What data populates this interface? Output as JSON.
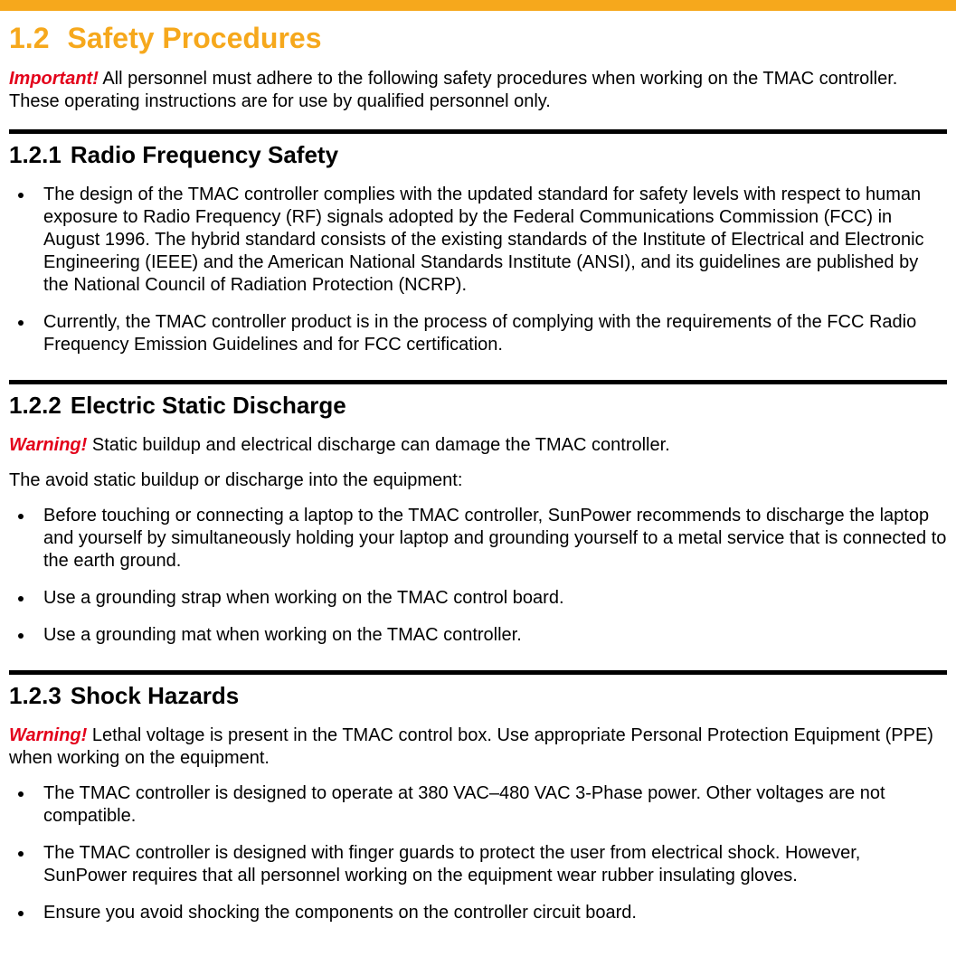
{
  "colors": {
    "orange_bar": "#f6a81c",
    "heading_orange": "#f6a81c",
    "warning_red": "#e3001a",
    "body_text": "#000000",
    "background": "#ffffff",
    "rule": "#000000"
  },
  "typography": {
    "h1_fontsize": 32,
    "h2_fontsize": 26,
    "body_fontsize": 20,
    "font_family": "Arial"
  },
  "header": {
    "section_number": "1.2",
    "section_title": "Safety Procedures"
  },
  "intro": {
    "label": "Important!",
    "text": " All personnel must adhere to the following safety procedures when working on the TMAC controller. These operating instructions are for use by qualified personnel only."
  },
  "sections": [
    {
      "number": "1.2.1",
      "title": "Radio Frequency Safety",
      "warning": null,
      "lead": null,
      "bullets": [
        "The design of the TMAC controller complies with the updated standard for safety levels with respect to human exposure to Radio Frequency (RF) signals adopted by the Federal Communications Commission (FCC) in August 1996. The hybrid standard consists of the existing standards of the Institute of Electrical and Electronic Engineering (IEEE) and the American National Standards Institute (ANSI), and its guidelines are published by the National Council of Radiation Protection (NCRP).",
        "Currently, the TMAC controller product is in the process of complying with the requirements of the FCC Radio Frequency Emission Guidelines and for FCC certification."
      ]
    },
    {
      "number": "1.2.2",
      "title": "Electric Static Discharge",
      "warning": {
        "label": "Warning!",
        "text": " Static buildup and electrical discharge can damage the TMAC controller."
      },
      "lead": "The avoid static buildup or discharge into the equipment:",
      "bullets": [
        "Before touching or connecting a laptop to the TMAC controller, SunPower recommends to discharge the laptop and yourself by simultaneously holding your laptop and grounding yourself to a metal service that is connected to the earth ground.",
        "Use a grounding strap when working on the TMAC control board.",
        "Use a grounding mat when working on the TMAC controller."
      ]
    },
    {
      "number": "1.2.3",
      "title": "Shock Hazards",
      "warning": {
        "label": "Warning!",
        "text": " Lethal voltage is present in the TMAC control box. Use appropriate Personal Protection Equipment (PPE) when working on the equipment."
      },
      "lead": null,
      "bullets": [
        "The TMAC controller is designed to operate at 380 VAC–480 VAC 3-Phase power. Other voltages are not compatible.",
        "The TMAC controller is designed with finger guards to protect the user from electrical shock. However, SunPower requires that all personnel working on the equipment wear rubber insulating gloves.",
        "Ensure you avoid shocking the components on the controller circuit board."
      ]
    }
  ]
}
